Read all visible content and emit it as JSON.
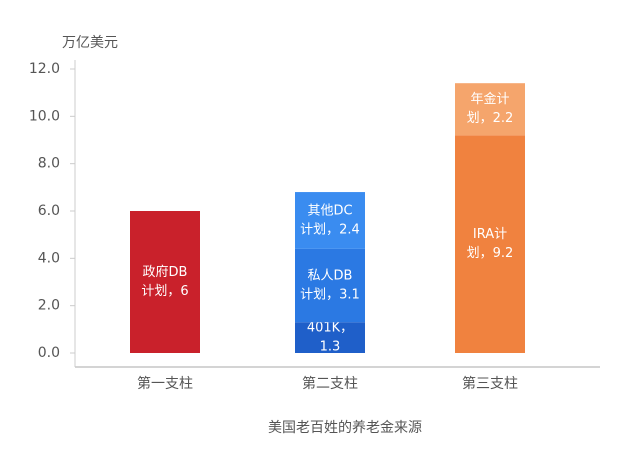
{
  "chart_data": {
    "type": "stacked_bar",
    "y_unit": "万亿美元",
    "xlabel": "美国老百姓的养老金来源",
    "categories": [
      "第一支柱",
      "第二支柱",
      "第三支柱"
    ],
    "ylim": [
      0,
      12
    ],
    "yticks": [
      {
        "value": 0,
        "label": "0.0"
      },
      {
        "value": 2,
        "label": "2.0"
      },
      {
        "value": 4,
        "label": "4.0"
      },
      {
        "value": 6,
        "label": "6.0"
      },
      {
        "value": 8,
        "label": "8.0"
      },
      {
        "value": 10,
        "label": "10.0"
      },
      {
        "value": 12,
        "label": "12.0"
      }
    ],
    "series": [
      {
        "color": "#c9212b",
        "values": [
          6,
          null,
          null
        ],
        "value_labels": [
          [
            "政府DB",
            "计划，6"
          ],
          null,
          null
        ]
      },
      {
        "color": "#1f5fc9",
        "values": [
          null,
          1.3,
          null
        ],
        "value_labels": [
          null,
          [
            "401K，",
            "1.3"
          ],
          null
        ]
      },
      {
        "color": "#2b79e3",
        "values": [
          null,
          3.1,
          null
        ],
        "value_labels": [
          null,
          [
            "私人DB",
            "计划，3.1"
          ],
          null
        ]
      },
      {
        "color": "#3a8cf0",
        "values": [
          null,
          2.4,
          null
        ],
        "value_labels": [
          null,
          [
            "其他DC",
            "计划，2.4"
          ],
          null
        ]
      },
      {
        "color": "#f0823f",
        "values": [
          null,
          null,
          9.2
        ],
        "value_labels": [
          null,
          null,
          [
            "IRA计",
            "划，9.2"
          ]
        ]
      },
      {
        "color": "#f5a56c",
        "values": [
          null,
          null,
          2.2
        ],
        "value_labels": [
          null,
          null,
          [
            "年金计",
            "划，2.2"
          ]
        ]
      }
    ]
  }
}
